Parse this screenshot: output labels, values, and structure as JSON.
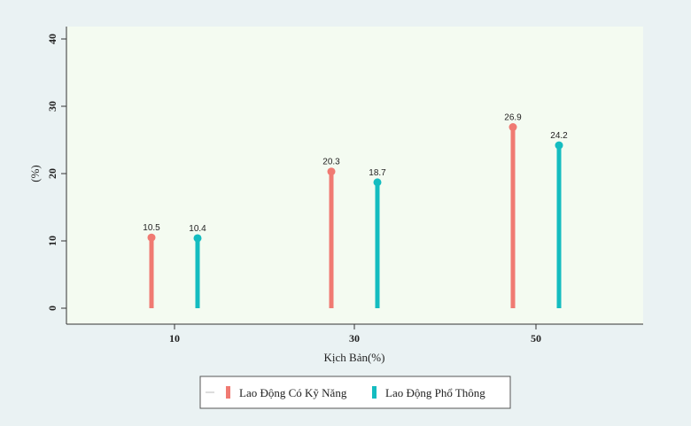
{
  "chart_data": {
    "type": "bar",
    "xlabel": "Kịch Bản(%)",
    "ylabel": "(%)",
    "categories": [
      "10",
      "30",
      "50"
    ],
    "ylim": [
      0,
      40
    ],
    "yticks": [
      0,
      10,
      20,
      30,
      40
    ],
    "series": [
      {
        "name": "Lao Động Có Kỹ Năng",
        "values": [
          10.5,
          20.3,
          26.9
        ],
        "labels": [
          "10.5",
          "20.3",
          "26.9"
        ],
        "color": "#f07a72"
      },
      {
        "name": "Lao Động Phổ Thông",
        "values": [
          10.4,
          18.7,
          24.2
        ],
        "labels": [
          "10.4",
          "18.7",
          "24.2"
        ],
        "color": "#14bcc0"
      }
    ],
    "plot_background": "#f4fbf1",
    "grid": false,
    "legend_position": "bottom"
  }
}
